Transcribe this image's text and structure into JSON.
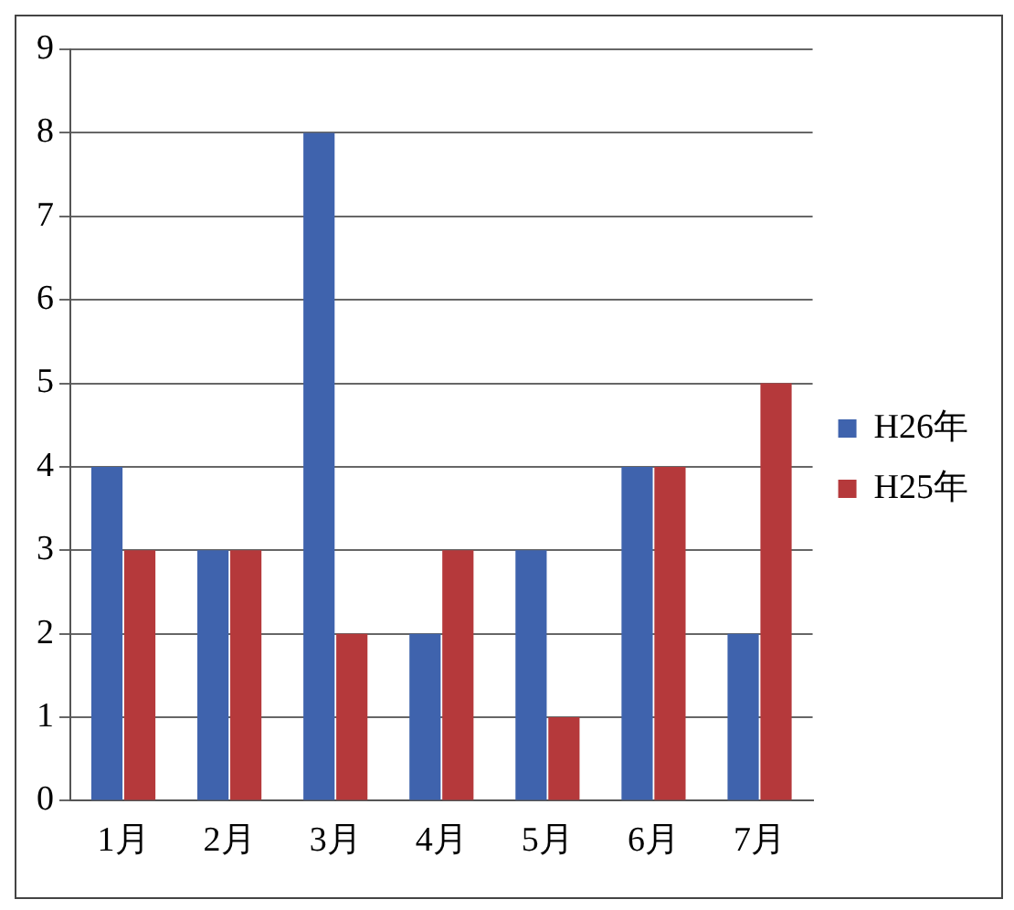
{
  "chart_data": {
    "type": "bar",
    "categories": [
      "1月",
      "2月",
      "3月",
      "4月",
      "5月",
      "6月",
      "7月"
    ],
    "series": [
      {
        "name": "H26年",
        "color": "#3f63ad",
        "values": [
          4,
          3,
          8,
          2,
          3,
          4,
          2
        ]
      },
      {
        "name": "H25年",
        "color": "#b5393b",
        "values": [
          3,
          3,
          2,
          3,
          1,
          4,
          5
        ]
      }
    ],
    "ylim": [
      0,
      9
    ],
    "yticks": [
      0,
      1,
      2,
      3,
      4,
      5,
      6,
      7,
      8,
      9
    ],
    "grid": "y",
    "legend": "right"
  }
}
